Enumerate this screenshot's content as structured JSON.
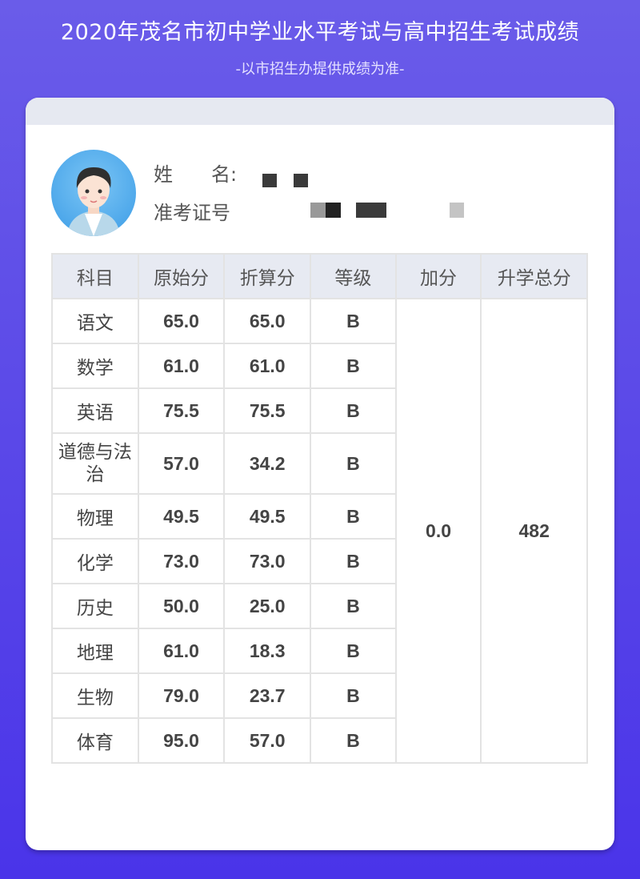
{
  "header": {
    "title": "2020年茂名市初中学业水平考试与高中招生考试成绩",
    "subtitle": "-以市招生办提供成绩为准-"
  },
  "profile": {
    "name_label": "姓　　名:",
    "id_label": "准考证号",
    "avatar": "student-avatar"
  },
  "table": {
    "columns": [
      "科目",
      "原始分",
      "折算分",
      "等级",
      "加分",
      "升学总分"
    ],
    "rows": [
      {
        "subject": "语文",
        "raw": "65.0",
        "converted": "65.0",
        "grade": "B"
      },
      {
        "subject": "数学",
        "raw": "61.0",
        "converted": "61.0",
        "grade": "B"
      },
      {
        "subject": "英语",
        "raw": "75.5",
        "converted": "75.5",
        "grade": "B"
      },
      {
        "subject": "道德与法治",
        "raw": "57.0",
        "converted": "34.2",
        "grade": "B"
      },
      {
        "subject": "物理",
        "raw": "49.5",
        "converted": "49.5",
        "grade": "B"
      },
      {
        "subject": "化学",
        "raw": "73.0",
        "converted": "73.0",
        "grade": "B"
      },
      {
        "subject": "历史",
        "raw": "50.0",
        "converted": "25.0",
        "grade": "B"
      },
      {
        "subject": "地理",
        "raw": "61.0",
        "converted": "18.3",
        "grade": "B"
      },
      {
        "subject": "生物",
        "raw": "79.0",
        "converted": "23.7",
        "grade": "B"
      },
      {
        "subject": "体育",
        "raw": "95.0",
        "converted": "57.0",
        "grade": "B"
      }
    ],
    "bonus": "0.0",
    "total": "482"
  }
}
